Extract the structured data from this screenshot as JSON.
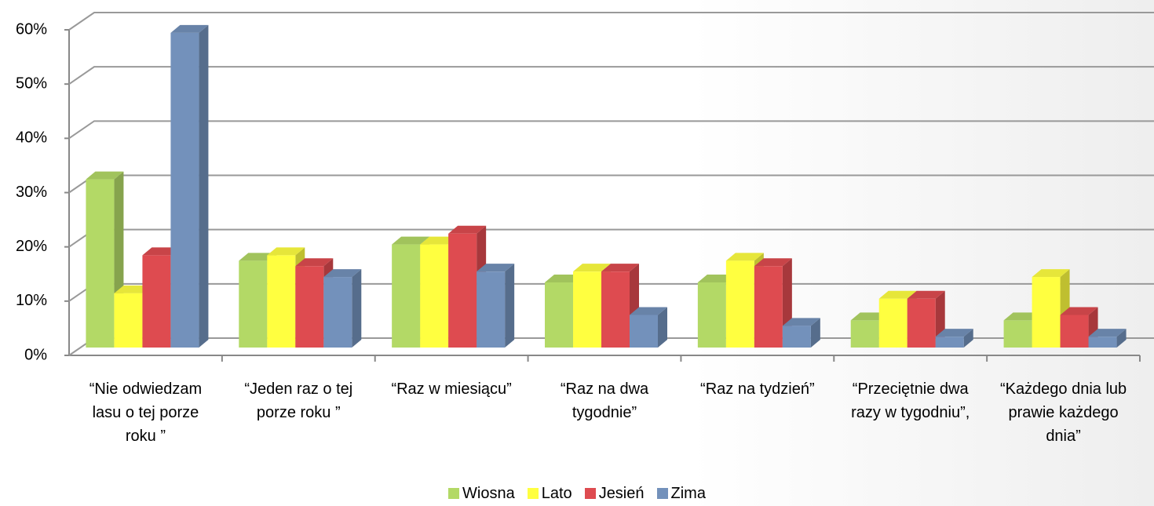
{
  "chart_data": {
    "type": "bar3d",
    "categories": [
      "“Nie odwiedzam lasu o tej porze roku ”",
      "“Jeden raz o tej porze roku ”",
      "“Raz w miesiącu”",
      "“Raz na dwa tygodnie”",
      "“Raz na tydzień”",
      "“Przeciętnie dwa razy w tygodniu”,",
      "“Każdego dnia lub prawie każdego dnia”"
    ],
    "series": [
      {
        "name": "Wiosna",
        "color": "#b3d966",
        "values": [
          31,
          16,
          19,
          12,
          12,
          5,
          5
        ]
      },
      {
        "name": "Lato",
        "color": "#ffff40",
        "values": [
          10,
          17,
          19,
          14,
          16,
          9,
          13
        ]
      },
      {
        "name": "Jesień",
        "color": "#de4b50",
        "values": [
          17,
          15,
          21,
          14,
          15,
          9,
          6
        ]
      },
      {
        "name": "Zima",
        "color": "#7391bb",
        "values": [
          58,
          13,
          14,
          6,
          4,
          2,
          2
        ]
      }
    ],
    "ylim": [
      0,
      60
    ],
    "yticks": [
      {
        "value": 0,
        "label": "0%"
      },
      {
        "value": 10,
        "label": "10%"
      },
      {
        "value": 20,
        "label": "20%"
      },
      {
        "value": 30,
        "label": "30%"
      },
      {
        "value": 40,
        "label": "40%"
      },
      {
        "value": 50,
        "label": "50%"
      },
      {
        "value": 60,
        "label": "60%"
      }
    ],
    "grid": true,
    "legend": "bottom"
  }
}
